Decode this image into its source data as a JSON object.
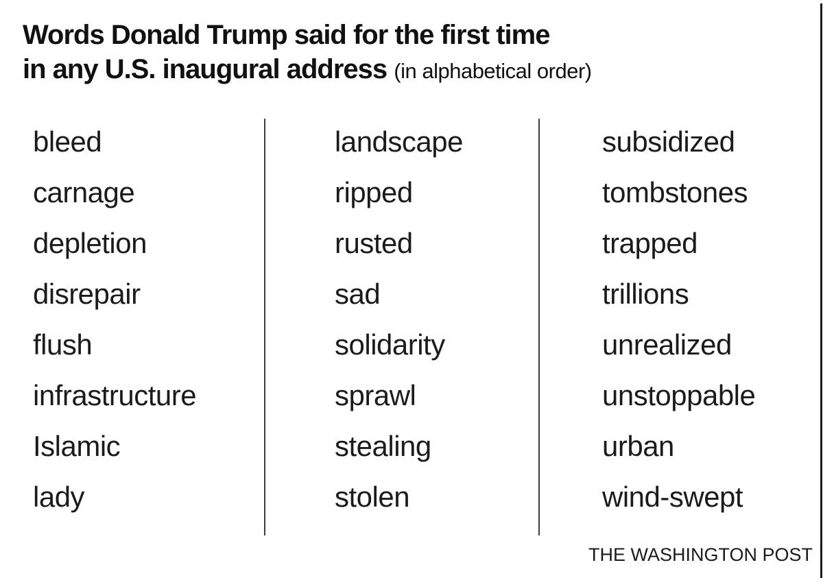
{
  "title": {
    "line1": "Words Donald Trump said for the first time",
    "line2_bold": "in any U.S. inaugural address",
    "note": "(in alphabetical order)"
  },
  "columns": [
    {
      "words": [
        "bleed",
        "carnage",
        "depletion",
        "disrepair",
        "flush",
        "infrastructure",
        "Islamic",
        "lady"
      ]
    },
    {
      "words": [
        "landscape",
        "ripped",
        "rusted",
        "sad",
        "solidarity",
        "sprawl",
        "stealing",
        "stolen"
      ]
    },
    {
      "words": [
        "subsidized",
        "tombstones",
        "trapped",
        "trillions",
        "unrealized",
        "unstoppable",
        "urban",
        "wind-swept"
      ]
    }
  ],
  "footer": {
    "source": "THE WASHINGTON POST"
  },
  "colors": {
    "text": "#1b1b1b",
    "divider": "#3e3e3e",
    "background": "#ffffff"
  },
  "chart_data": {
    "type": "table",
    "title": "Words Donald Trump said for the first time in any U.S. inaugural address",
    "subtitle": "(in alphabetical order)",
    "columns": [
      [
        "bleed",
        "carnage",
        "depletion",
        "disrepair",
        "flush",
        "infrastructure",
        "Islamic",
        "lady"
      ],
      [
        "landscape",
        "ripped",
        "rusted",
        "sad",
        "solidarity",
        "sprawl",
        "stealing",
        "stolen"
      ],
      [
        "subsidized",
        "tombstones",
        "trapped",
        "trillions",
        "unrealized",
        "unstoppable",
        "urban",
        "wind-swept"
      ]
    ],
    "source": "THE WASHINGTON POST"
  }
}
